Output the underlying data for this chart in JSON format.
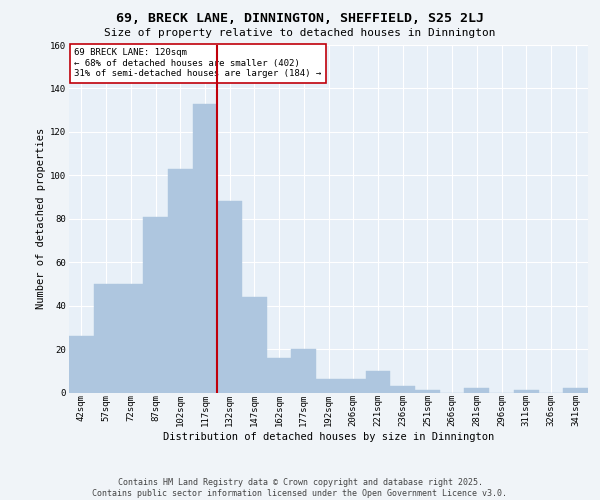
{
  "title_line1": "69, BRECK LANE, DINNINGTON, SHEFFIELD, S25 2LJ",
  "title_line2": "Size of property relative to detached houses in Dinnington",
  "xlabel": "Distribution of detached houses by size in Dinnington",
  "ylabel": "Number of detached properties",
  "categories": [
    "42sqm",
    "57sqm",
    "72sqm",
    "87sqm",
    "102sqm",
    "117sqm",
    "132sqm",
    "147sqm",
    "162sqm",
    "177sqm",
    "192sqm",
    "206sqm",
    "221sqm",
    "236sqm",
    "251sqm",
    "266sqm",
    "281sqm",
    "296sqm",
    "311sqm",
    "326sqm",
    "341sqm"
  ],
  "values": [
    26,
    50,
    50,
    81,
    103,
    133,
    88,
    44,
    16,
    20,
    6,
    6,
    10,
    3,
    1,
    0,
    2,
    0,
    1,
    0,
    2
  ],
  "bar_color": "#aec6df",
  "bar_edge_color": "#aec6df",
  "highlight_edge_color": "#c0000b",
  "vline_color": "#c0000b",
  "annotation_text": "69 BRECK LANE: 120sqm\n← 68% of detached houses are smaller (402)\n31% of semi-detached houses are larger (184) →",
  "annotation_box_color": "#ffffff",
  "annotation_box_edge": "#c0000b",
  "footer_text": "Contains HM Land Registry data © Crown copyright and database right 2025.\nContains public sector information licensed under the Open Government Licence v3.0.",
  "ylim": [
    0,
    160
  ],
  "yticks": [
    0,
    20,
    40,
    60,
    80,
    100,
    120,
    140,
    160
  ],
  "bg_color": "#e8f0f8",
  "fig_bg_color": "#f0f4f8",
  "grid_color": "#ffffff",
  "title1_fontsize": 9.5,
  "title2_fontsize": 8.0,
  "ylabel_fontsize": 7.5,
  "xlabel_fontsize": 7.5,
  "tick_fontsize": 6.5,
  "footer_fontsize": 6.0,
  "annot_fontsize": 6.5
}
